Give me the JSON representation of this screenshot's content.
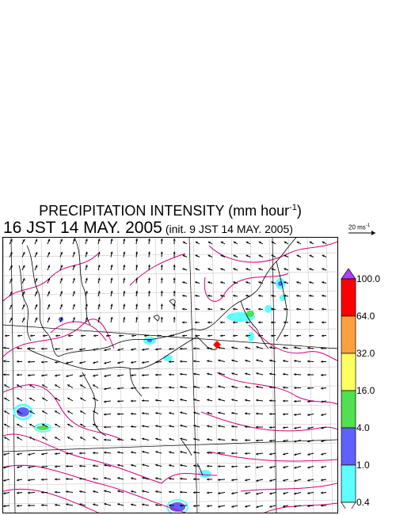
{
  "title": "PRECIPITATION INTENSITY (mm hour",
  "title_exp": "-1",
  "title_close": ")",
  "subtitle": "16 JST 14 MAY. 2005",
  "subtitle_init": "(init. 9 JST 14 MAY. 2005)",
  "wind_scale": {
    "label": "20 ms",
    "exp": "-1"
  },
  "colorbar": {
    "labels": [
      "100.0",
      "64.0",
      "32.0",
      "16.0",
      "4.0",
      "1.0",
      "0.4"
    ],
    "colors": [
      "#ff0000",
      "#ffa040",
      "#ffff60",
      "#50e050",
      "#6060ff",
      "#60ffff"
    ],
    "over_color": "#b040ff",
    "under_color": "#ffffff"
  },
  "colors": {
    "isobar": "#d0007a",
    "coast": "#000000",
    "grid": "#999999",
    "marker": "#ff0000"
  }
}
